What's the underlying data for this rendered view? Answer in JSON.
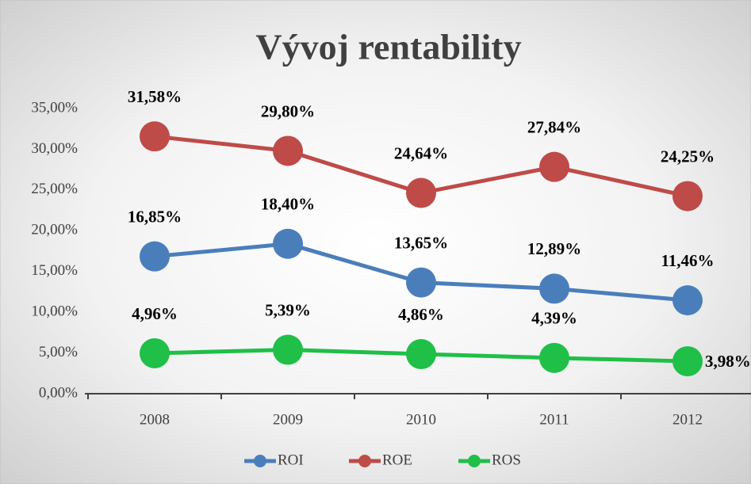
{
  "chart_data": {
    "type": "line",
    "title": "Vývoj rentability",
    "categories": [
      "2008",
      "2009",
      "2010",
      "2011",
      "2012"
    ],
    "series": [
      {
        "name": "ROI",
        "color": "#4a7ebb",
        "values": [
          16.85,
          18.4,
          13.65,
          12.89,
          11.46
        ],
        "value_labels": [
          "16,85%",
          "18,40%",
          "13,65%",
          "12,89%",
          "11,46%"
        ]
      },
      {
        "name": "ROE",
        "color": "#be4b48",
        "values": [
          31.58,
          29.8,
          24.64,
          27.84,
          24.25
        ],
        "value_labels": [
          "31,58%",
          "29,80%",
          "24,64%",
          "27,84%",
          "24,25%"
        ]
      },
      {
        "name": "ROS",
        "color": "#1fbf48",
        "values": [
          4.96,
          5.39,
          4.86,
          4.39,
          3.98
        ],
        "value_labels": [
          "4,96%",
          "5,39%",
          "4,86%",
          "4,39%",
          "3,98%"
        ]
      }
    ],
    "ylim": [
      0,
      35
    ],
    "yticks": [
      {
        "value": 0,
        "label": "0,00%"
      },
      {
        "value": 5,
        "label": "5,00%"
      },
      {
        "value": 10,
        "label": "10,00%"
      },
      {
        "value": 15,
        "label": "15,00%"
      },
      {
        "value": 20,
        "label": "20,00%"
      },
      {
        "value": 25,
        "label": "25,00%"
      },
      {
        "value": 30,
        "label": "30,00%"
      },
      {
        "value": 35,
        "label": "35,00%"
      }
    ],
    "legend": "bottom"
  }
}
